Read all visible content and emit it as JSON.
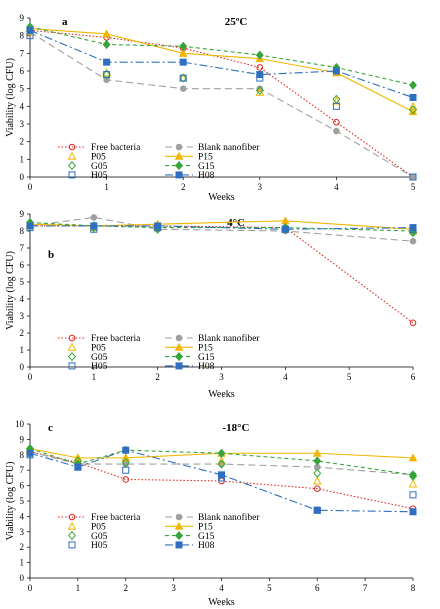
{
  "chart_data": [
    {
      "type": "line",
      "panel_label": "a",
      "title": "25ºC",
      "xlabel": "Weeks",
      "ylabel": "Viability (log CFU)",
      "x": [
        0,
        1,
        2,
        3,
        4,
        5
      ],
      "xlim": [
        0,
        5
      ],
      "ylim": [
        0,
        9
      ],
      "series": [
        {
          "name": "Free bacteria",
          "values": [
            8.3,
            7.9,
            7.3,
            6.2,
            3.1,
            0.0
          ]
        },
        {
          "name": "Blank nanofiber",
          "values": [
            8.2,
            5.5,
            5.0,
            5.0,
            2.6,
            0.0
          ]
        },
        {
          "name": "P05",
          "values": [
            8.2,
            5.9,
            5.6,
            4.8,
            4.3,
            4.0
          ]
        },
        {
          "name": "P15",
          "values": [
            8.4,
            8.1,
            7.0,
            6.7,
            5.9,
            3.7
          ]
        },
        {
          "name": "G05",
          "values": [
            8.3,
            5.8,
            5.6,
            4.9,
            4.4,
            3.8
          ]
        },
        {
          "name": "G15",
          "values": [
            8.5,
            7.5,
            7.4,
            6.9,
            6.2,
            5.2
          ]
        },
        {
          "name": "H05",
          "values": [
            8.0,
            5.8,
            5.6,
            5.6,
            4.0,
            0.0
          ]
        },
        {
          "name": "H08",
          "values": [
            8.3,
            6.5,
            6.5,
            5.8,
            6.0,
            4.5
          ]
        }
      ]
    },
    {
      "type": "line",
      "panel_label": "b",
      "title": "4°C",
      "xlabel": "Weeks",
      "ylabel": "Viability (log CFU)",
      "x": [
        0,
        1,
        2,
        4,
        6
      ],
      "xticks": [
        0,
        1,
        2,
        3,
        4,
        5,
        6
      ],
      "xlim": [
        0,
        6
      ],
      "ylim": [
        0,
        9
      ],
      "series": [
        {
          "name": "Free bacteria",
          "values": [
            8.3,
            8.3,
            8.3,
            8.2,
            2.6
          ]
        },
        {
          "name": "Blank nanofiber",
          "values": [
            8.3,
            8.8,
            8.1,
            8.0,
            7.4
          ]
        },
        {
          "name": "P05",
          "values": [
            8.3,
            8.2,
            8.2,
            8.1,
            8.0
          ]
        },
        {
          "name": "P15",
          "values": [
            8.4,
            8.3,
            8.4,
            8.6,
            8.1
          ]
        },
        {
          "name": "G05",
          "values": [
            8.3,
            8.2,
            8.1,
            8.1,
            7.9
          ]
        },
        {
          "name": "G15",
          "values": [
            8.5,
            8.3,
            8.2,
            8.2,
            8.0
          ]
        },
        {
          "name": "H05",
          "values": [
            8.2,
            8.1,
            8.2,
            8.1,
            8.1
          ]
        },
        {
          "name": "H08",
          "values": [
            8.3,
            8.3,
            8.3,
            8.1,
            8.2
          ]
        }
      ]
    },
    {
      "type": "line",
      "panel_label": "c",
      "title": "-18°C",
      "xlabel": "Weeks",
      "ylabel": "Viability (log CFU)",
      "x": [
        0,
        1,
        2,
        4,
        6,
        8
      ],
      "xticks": [
        0,
        1,
        2,
        3,
        4,
        5,
        6,
        7,
        8
      ],
      "xlim": [
        0,
        8
      ],
      "ylim": [
        0,
        10
      ],
      "series": [
        {
          "name": "Free bacteria",
          "values": [
            8.2,
            7.5,
            6.4,
            6.3,
            5.8,
            4.5
          ]
        },
        {
          "name": "Blank nanofiber",
          "values": [
            8.2,
            7.4,
            7.4,
            7.4,
            7.2,
            6.7
          ]
        },
        {
          "name": "P05",
          "values": [
            8.3,
            7.8,
            7.8,
            7.6,
            6.3,
            6.1
          ]
        },
        {
          "name": "P15",
          "values": [
            8.4,
            7.8,
            7.8,
            8.1,
            8.1,
            7.8
          ]
        },
        {
          "name": "G05",
          "values": [
            8.4,
            7.6,
            7.5,
            7.4,
            6.8,
            6.6
          ]
        },
        {
          "name": "G15",
          "values": [
            8.4,
            7.4,
            8.3,
            8.1,
            7.6,
            6.7
          ]
        },
        {
          "name": "H05",
          "values": [
            8.0,
            7.2,
            7.0,
            6.5,
            4.4,
            5.4
          ]
        },
        {
          "name": "H08",
          "values": [
            8.1,
            7.2,
            8.3,
            6.7,
            4.4,
            4.3
          ]
        }
      ]
    }
  ]
}
